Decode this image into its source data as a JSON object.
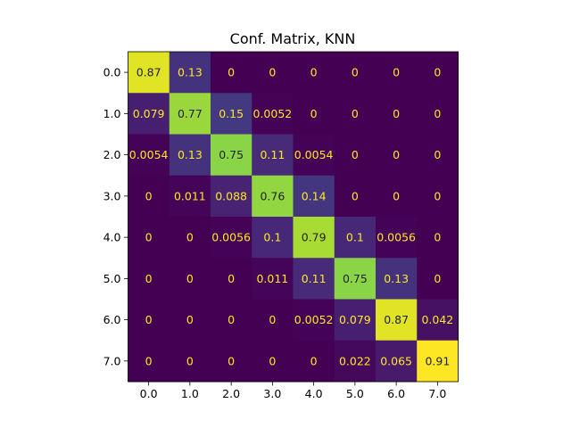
{
  "chart_data": {
    "type": "heatmap",
    "title": "Conf. Matrix, KNN",
    "xlabel": "",
    "ylabel": "",
    "x_categories": [
      "0.0",
      "1.0",
      "2.0",
      "3.0",
      "4.0",
      "5.0",
      "6.0",
      "7.0"
    ],
    "y_categories": [
      "0.0",
      "1.0",
      "2.0",
      "3.0",
      "4.0",
      "5.0",
      "6.0",
      "7.0"
    ],
    "colormap": "viridis",
    "value_range": [
      0,
      0.91
    ],
    "values": [
      [
        0.87,
        0.13,
        0,
        0,
        0,
        0,
        0,
        0
      ],
      [
        0.079,
        0.77,
        0.15,
        0.0052,
        0,
        0,
        0,
        0
      ],
      [
        0.0054,
        0.13,
        0.75,
        0.11,
        0.0054,
        0,
        0,
        0
      ],
      [
        0,
        0.011,
        0.088,
        0.76,
        0.14,
        0,
        0,
        0
      ],
      [
        0,
        0,
        0.0056,
        0.1,
        0.79,
        0.1,
        0.0056,
        0
      ],
      [
        0,
        0,
        0,
        0.011,
        0.11,
        0.75,
        0.13,
        0
      ],
      [
        0,
        0,
        0,
        0,
        0.0052,
        0.079,
        0.87,
        0.042
      ],
      [
        0,
        0,
        0,
        0,
        0,
        0.022,
        0.065,
        0.91
      ]
    ],
    "cell_labels": [
      [
        "0.87",
        "0.13",
        "0",
        "0",
        "0",
        "0",
        "0",
        "0"
      ],
      [
        "0.079",
        "0.77",
        "0.15",
        "0.0052",
        "0",
        "0",
        "0",
        "0"
      ],
      [
        "0.0054",
        "0.13",
        "0.75",
        "0.11",
        "0.0054",
        "0",
        "0",
        "0"
      ],
      [
        "0",
        "0.011",
        "0.088",
        "0.76",
        "0.14",
        "0",
        "0",
        "0"
      ],
      [
        "0",
        "0",
        "0.0056",
        "0.1",
        "0.79",
        "0.1",
        "0.0056",
        "0"
      ],
      [
        "0",
        "0",
        "0",
        "0.011",
        "0.11",
        "0.75",
        "0.13",
        "0"
      ],
      [
        "0",
        "0",
        "0",
        "0",
        "0.0052",
        "0.079",
        "0.87",
        "0.042"
      ],
      [
        "0",
        "0",
        "0",
        "0",
        "0",
        "0.022",
        "0.065",
        "0.91"
      ]
    ],
    "text_colors": {
      "dark_cell": "#fde725",
      "light_cell": "#222222"
    },
    "grid": false
  }
}
